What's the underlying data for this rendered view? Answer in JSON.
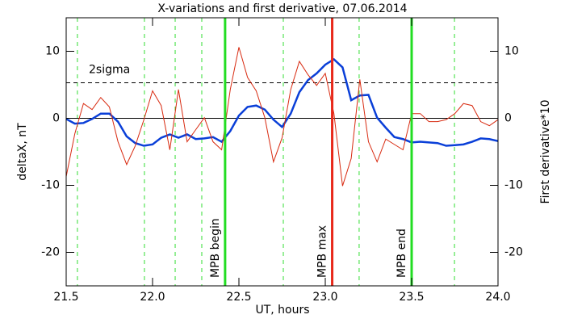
{
  "chart_data": {
    "type": "line",
    "title": "X-variations and first derivative, 07.06.2014",
    "xlabel": "UT, hours",
    "x": [
      21.5,
      21.55,
      21.6,
      21.65,
      21.7,
      21.75,
      21.8,
      21.85,
      21.9,
      21.95,
      22.0,
      22.05,
      22.1,
      22.15,
      22.2,
      22.25,
      22.3,
      22.35,
      22.4,
      22.45,
      22.5,
      22.55,
      22.6,
      22.65,
      22.7,
      22.75,
      22.8,
      22.85,
      22.9,
      22.95,
      23.0,
      23.05,
      23.1,
      23.15,
      23.2,
      23.25,
      23.3,
      23.35,
      23.4,
      23.45,
      23.5,
      23.55,
      23.6,
      23.65,
      23.7,
      23.75,
      23.8,
      23.85,
      23.9,
      23.95,
      24.0
    ],
    "series": [
      {
        "name": "deltaX, nT",
        "color": "#0a3fd8",
        "values": [
          -0.1,
          -0.8,
          -0.7,
          -0.1,
          0.7,
          0.7,
          -0.5,
          -2.7,
          -3.7,
          -4.1,
          -3.9,
          -2.9,
          -2.4,
          -2.9,
          -2.4,
          -3.1,
          -3.0,
          -2.8,
          -3.5,
          -1.9,
          0.4,
          1.7,
          1.9,
          1.3,
          -0.2,
          -1.3,
          0.7,
          3.9,
          5.7,
          6.7,
          8.0,
          8.8,
          7.6,
          2.7,
          3.4,
          3.5,
          0.1,
          -1.4,
          -2.8,
          -3.1,
          -3.6,
          -3.5,
          -3.6,
          -3.7,
          -4.1,
          -4.0,
          -3.9,
          -3.5,
          -3.0,
          -3.1,
          -3.4
        ]
      },
      {
        "name": "First derivative*10",
        "color": "#d82a10",
        "axis": "y2",
        "values": [
          -8.7,
          -2.3,
          2.2,
          1.3,
          3.1,
          1.7,
          -3.5,
          -6.9,
          -4.1,
          -0.2,
          4.1,
          1.9,
          -4.7,
          4.3,
          -3.5,
          -1.7,
          0.1,
          -3.5,
          -4.7,
          4.3,
          10.6,
          6.1,
          4.1,
          0.1,
          -6.5,
          -2.9,
          4.3,
          8.5,
          6.5,
          4.9,
          6.7,
          0.7,
          -10.1,
          -6.0,
          5.8,
          -3.5,
          -6.5,
          -3.1,
          -3.9,
          -4.7,
          0.7,
          0.7,
          -0.5,
          -0.5,
          -0.2,
          0.7,
          2.2,
          1.9,
          -0.5,
          -1.1,
          -0.2
        ]
      }
    ],
    "xlim": [
      21.5,
      24.0
    ],
    "xticks": [
      21.5,
      {
        "value": 22.0,
        "label": "22.0"
      },
      22.5,
      {
        "value": 23.0,
        "label": "23.0"
      },
      23.5,
      {
        "value": 24.0,
        "label": "24.0"
      }
    ],
    "ylim": [
      -25,
      15
    ],
    "yticks": [
      -20,
      -10,
      0,
      10
    ],
    "y2lim": [
      -25,
      15
    ],
    "y2ticks": [
      -20,
      -10,
      0,
      10
    ],
    "threshold": {
      "value": 5.3,
      "label": "2sigma"
    },
    "dashed_lines": {
      "color": "#33dd33",
      "x": [
        21.565,
        21.953,
        22.131,
        22.285,
        22.757,
        23.196,
        23.748
      ]
    },
    "markers": [
      {
        "x": 22.42,
        "label": "MPB begin",
        "color": "#22dd22"
      },
      {
        "x": 23.04,
        "label": "MPB max",
        "color": "#e8281a"
      },
      {
        "x": 23.5,
        "label": "MPB end",
        "color": "#22dd22"
      }
    ]
  }
}
